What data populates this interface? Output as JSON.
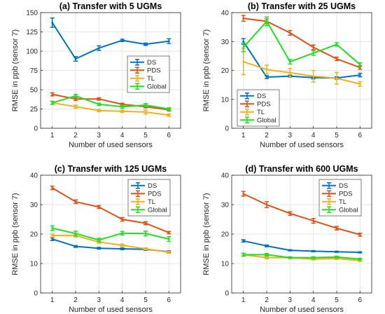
{
  "colors": {
    "DS": "#0072BD",
    "PDS": "#D95319",
    "TL": "#EDB120",
    "Global": "#22DD22",
    "grid": "#e6e6e6",
    "axis": "#262626"
  },
  "chart_data": [
    {
      "type": "line",
      "title": "(a) Transfer with 5 UGMs",
      "xlabel": "Number of used sensors",
      "ylabel": "RMSE in ppb (sensor 7)",
      "xlim": [
        0.5,
        6.5
      ],
      "ylim": [
        0,
        150
      ],
      "xticks": [
        1,
        2,
        3,
        4,
        5,
        6
      ],
      "yticks": [
        0,
        25,
        50,
        75,
        100,
        125,
        150
      ],
      "grid": true,
      "legend_position": "center-right",
      "x": [
        1,
        2,
        3,
        4,
        5,
        6
      ],
      "series": [
        {
          "name": "DS",
          "values": [
            137,
            90,
            104,
            114,
            109,
            113
          ],
          "errors": [
            6,
            3,
            3,
            1.5,
            1.5,
            3
          ]
        },
        {
          "name": "PDS",
          "values": [
            44,
            38,
            38,
            31,
            28,
            24
          ],
          "errors": [
            2,
            2,
            1.5,
            1.5,
            1.5,
            1.5
          ]
        },
        {
          "name": "TL",
          "values": [
            33,
            28,
            23,
            22,
            21,
            17
          ],
          "errors": [
            2,
            2,
            1.5,
            1.5,
            2.5,
            1.5
          ]
        },
        {
          "name": "Global",
          "values": [
            33,
            42,
            31,
            28,
            30,
            25
          ],
          "errors": [
            2,
            2,
            1.5,
            2,
            2,
            1.5
          ]
        }
      ]
    },
    {
      "type": "line",
      "title": "(b) Transfer with 25 UGMs",
      "xlabel": "Number of used sensors",
      "ylabel": "RMSE in ppb (sensor 7)",
      "xlim": [
        0.5,
        6.5
      ],
      "ylim": [
        0,
        40
      ],
      "xticks": [
        1,
        2,
        3,
        4,
        5,
        6
      ],
      "yticks": [
        0,
        10,
        20,
        30,
        40
      ],
      "grid": true,
      "legend_position": "bottom-left",
      "x": [
        1,
        2,
        3,
        4,
        5,
        6
      ],
      "series": [
        {
          "name": "DS",
          "values": [
            30,
            17.7,
            18,
            17.5,
            17.4,
            18.4
          ],
          "errors": [
            1,
            0.5,
            0.4,
            0.4,
            0.4,
            0.6
          ]
        },
        {
          "name": "PDS",
          "values": [
            38,
            37,
            33,
            28,
            24,
            21
          ],
          "errors": [
            1,
            0.8,
            0.8,
            0.8,
            0.6,
            0.6
          ]
        },
        {
          "name": "TL",
          "values": [
            23,
            20.3,
            19.2,
            18,
            17.3,
            15.3
          ],
          "errors": [
            4.5,
            1.5,
            1.5,
            2,
            2,
            0.8
          ]
        },
        {
          "name": "Global",
          "values": [
            28,
            37,
            23,
            26,
            29,
            22
          ],
          "errors": [
            1.5,
            1.5,
            0.8,
            0.8,
            0.6,
            0.6
          ]
        }
      ]
    },
    {
      "type": "line",
      "title": "(c) Transfer with 125 UGMs",
      "xlabel": "Number of used sensors",
      "ylabel": "RMSE in ppb (sensor 7)",
      "xlim": [
        0.5,
        6.5
      ],
      "ylim": [
        0,
        40
      ],
      "xticks": [
        1,
        2,
        3,
        4,
        5,
        6
      ],
      "yticks": [
        0,
        10,
        20,
        30,
        40
      ],
      "grid": true,
      "legend_position": "top-right",
      "x": [
        1,
        2,
        3,
        4,
        5,
        6
      ],
      "series": [
        {
          "name": "DS",
          "values": [
            18.3,
            15.8,
            15.2,
            15,
            14.8,
            14
          ],
          "errors": [
            0.5,
            0.3,
            0.3,
            0.3,
            0.3,
            0.3
          ]
        },
        {
          "name": "PDS",
          "values": [
            35.7,
            31,
            29.2,
            25,
            23.7,
            20.5
          ],
          "errors": [
            0.6,
            0.6,
            0.5,
            0.6,
            0.5,
            0.4
          ]
        },
        {
          "name": "TL",
          "values": [
            19.5,
            19.5,
            17.3,
            16.2,
            15,
            13.8
          ],
          "errors": [
            0.5,
            0.5,
            0.4,
            0.4,
            0.3,
            0.3
          ]
        },
        {
          "name": "Global",
          "values": [
            22,
            20.2,
            18,
            20.3,
            20.2,
            18.3
          ],
          "errors": [
            0.8,
            0.8,
            0.6,
            0.6,
            0.8,
            0.8
          ]
        }
      ]
    },
    {
      "type": "line",
      "title": "(d) Transfer with 600 UGMs",
      "xlabel": "Number of used sensors",
      "ylabel": "RMSE in ppb (sensor 7)",
      "xlim": [
        0.5,
        6.5
      ],
      "ylim": [
        0,
        40
      ],
      "xticks": [
        1,
        2,
        3,
        4,
        5,
        6
      ],
      "yticks": [
        0,
        10,
        20,
        30,
        40
      ],
      "grid": true,
      "legend_position": "top-right",
      "x": [
        1,
        2,
        3,
        4,
        5,
        6
      ],
      "series": [
        {
          "name": "DS",
          "values": [
            17.7,
            16,
            14.5,
            14.2,
            14,
            13.8
          ],
          "errors": [
            0.4,
            0.3,
            0.2,
            0.2,
            0.2,
            0.2
          ]
        },
        {
          "name": "PDS",
          "values": [
            33.7,
            30,
            27,
            24.5,
            22,
            19.8
          ],
          "errors": [
            0.8,
            1,
            0.6,
            0.8,
            0.6,
            0.5
          ]
        },
        {
          "name": "TL",
          "values": [
            13,
            12,
            12,
            11.5,
            11.7,
            11
          ],
          "errors": [
            0.5,
            0.4,
            0.3,
            0.3,
            0.3,
            0.3
          ]
        },
        {
          "name": "Global",
          "values": [
            13,
            13,
            12,
            12,
            12.2,
            11.5
          ],
          "errors": [
            0.5,
            0.4,
            0.3,
            0.3,
            0.3,
            0.3
          ]
        }
      ]
    }
  ]
}
